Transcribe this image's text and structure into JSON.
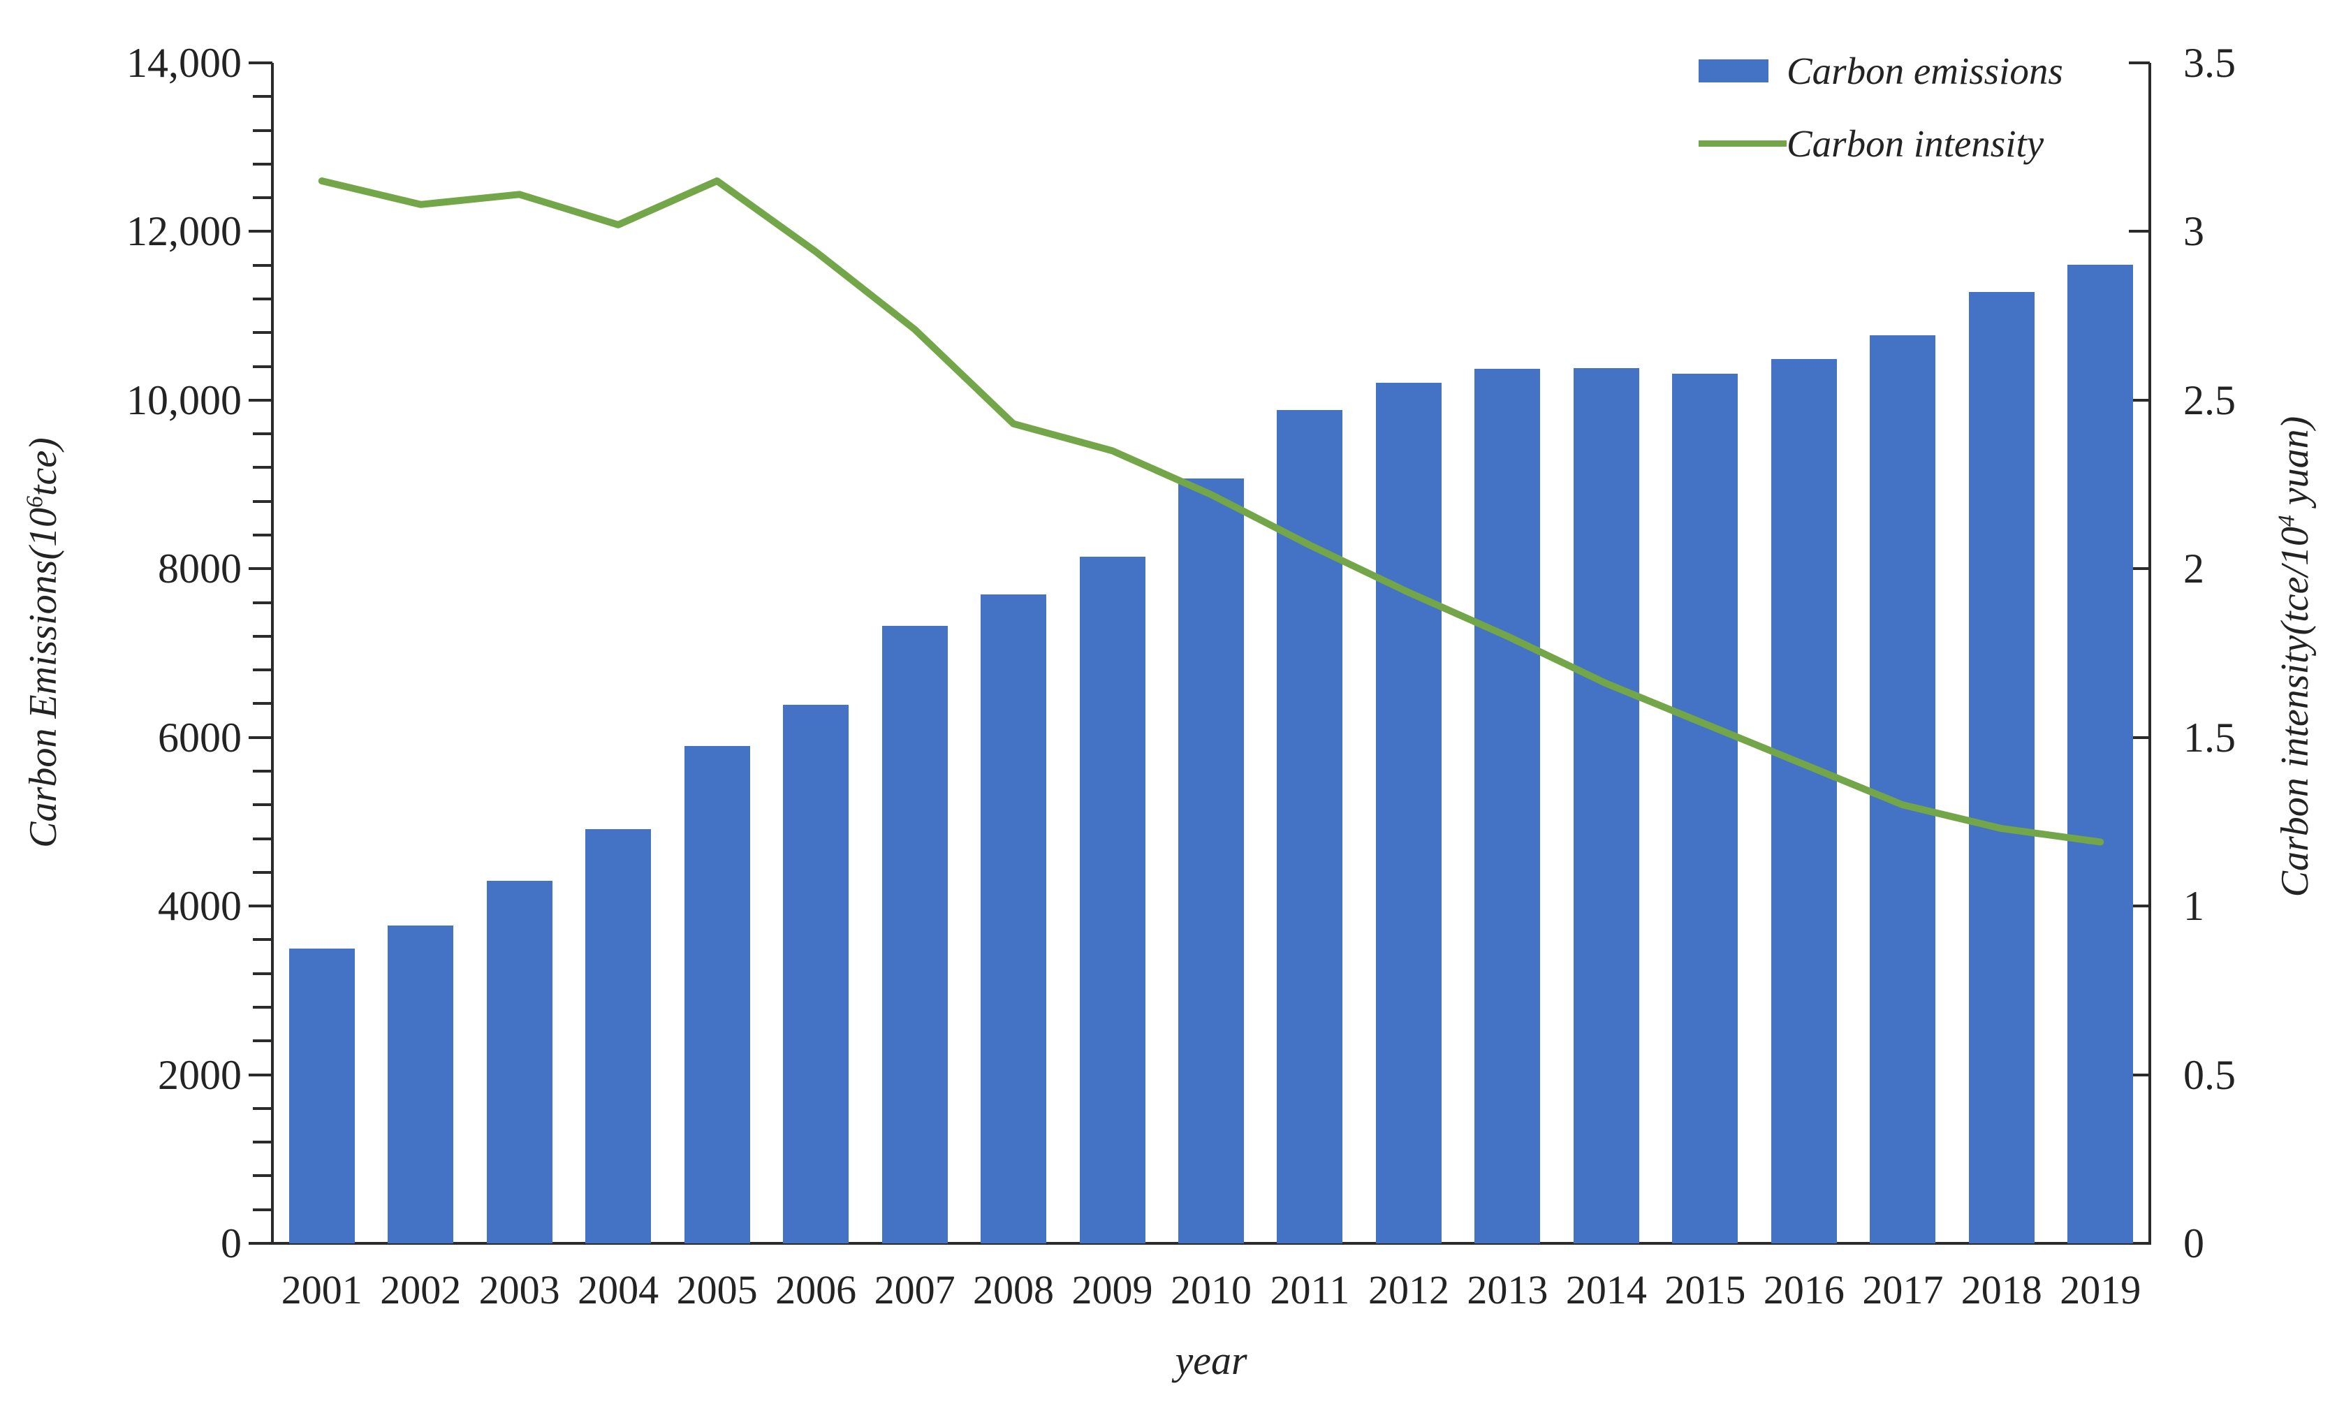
{
  "legend": {
    "items": [
      {
        "label": "Carbon emissions",
        "swatch": "bar",
        "color": "#4472C4"
      },
      {
        "label": "Carbon intensity",
        "swatch": "line",
        "color": "#73A649"
      }
    ]
  },
  "axes_titles": {
    "left": {
      "pre": "Carbon Emissions(10",
      "sup": "6",
      "post": "tce)"
    },
    "right": {
      "pre": "Carbon intensity(tce/10",
      "sup": "4",
      "post": " yuan)"
    }
  },
  "chart_data": {
    "type": "combo",
    "x": [
      "2001",
      "2002",
      "2003",
      "2004",
      "2005",
      "2006",
      "2007",
      "2008",
      "2009",
      "2010",
      "2011",
      "2012",
      "2013",
      "2014",
      "2015",
      "2016",
      "2017",
      "2018",
      "2019"
    ],
    "series": [
      {
        "name": "Carbon emissions",
        "type": "bar",
        "axis": "left",
        "color": "#4472C4",
        "values": [
          3500,
          3770,
          4300,
          4910,
          5900,
          6390,
          7320,
          7700,
          8140,
          9070,
          9880,
          10210,
          10370,
          10380,
          10310,
          10490,
          10770,
          11280,
          11610
        ]
      },
      {
        "name": "Carbon intensity",
        "type": "line",
        "axis": "right",
        "color": "#73A649",
        "values": [
          3.15,
          3.08,
          3.11,
          3.02,
          3.15,
          2.94,
          2.71,
          2.43,
          2.35,
          2.22,
          2.07,
          1.93,
          1.8,
          1.66,
          1.54,
          1.42,
          1.3,
          1.23,
          1.19
        ]
      }
    ],
    "left_axis": {
      "title": "Carbon Emissions(10⁶tce)",
      "range": [
        0,
        14000
      ],
      "major_tick": 2000,
      "minor_tick": 400,
      "tick_labels": [
        "0",
        "2000",
        "4000",
        "6000",
        "8000",
        "10,000",
        "12,000",
        "14,000"
      ]
    },
    "right_axis": {
      "title": "Carbon intensity(tce/10⁴ yuan)",
      "range": [
        0,
        3.5
      ],
      "major_tick": 0.5,
      "tick_labels": [
        "0",
        "0.5",
        "1",
        "1.5",
        "2",
        "2.5",
        "3",
        "3.5"
      ]
    },
    "xlabel": "year",
    "grid": false,
    "legend_position": "top-right"
  }
}
